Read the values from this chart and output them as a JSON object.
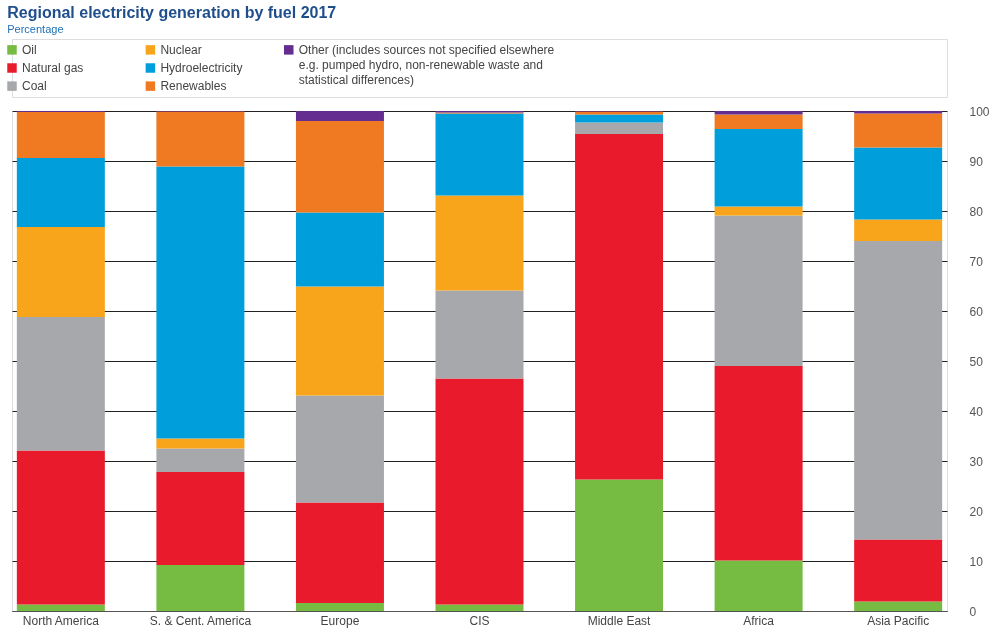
{
  "chart_data": {
    "type": "bar",
    "title": "Regional electricity generation by fuel 2017",
    "subtitle": "Percentage",
    "stacked": true,
    "legend": "top left",
    "grid": "y",
    "categories": [
      "North America",
      "S. & Cent. America",
      "Europe",
      "CIS",
      "Middle East",
      "Africa",
      "Asia Pacific"
    ],
    "ylim": [
      0,
      100
    ],
    "yticks": [
      0,
      10,
      20,
      30,
      40,
      50,
      60,
      70,
      80,
      90,
      100
    ],
    "series": [
      {
        "name": "Oil",
        "color": "#76bc43",
        "values": [
          1.3,
          9.2,
          1.6,
          1.3,
          26.3,
          10.1,
          1.9
        ]
      },
      {
        "name": "Natural gas",
        "color": "#e81a2b",
        "values": [
          30.8,
          18.6,
          20.1,
          45.2,
          69.1,
          38.9,
          12.4
        ]
      },
      {
        "name": "Coal",
        "color": "#a6a8ab",
        "values": [
          26.7,
          4.7,
          21.4,
          17.6,
          2.3,
          30.1,
          59.7
        ]
      },
      {
        "name": "Nuclear",
        "color": "#f8a51c",
        "values": [
          18.0,
          2.0,
          21.8,
          19.0,
          0,
          1.8,
          4.3
        ]
      },
      {
        "name": "Hydroelectricity",
        "color": "#009fdb",
        "values": [
          13.8,
          54.4,
          14.8,
          16.4,
          1.6,
          15.5,
          14.4
        ]
      },
      {
        "name": "Renewables",
        "color": "#f07a22",
        "values": [
          9.2,
          11.0,
          18.3,
          0.2,
          0.6,
          2.9,
          6.8
        ]
      },
      {
        "name": "Other (includes sources not specified elsewhere e.g. pumped hydro, non-renewable waste and statistical differences)",
        "color": "#662d91",
        "values": [
          0.2,
          0.1,
          2.0,
          0.3,
          0.1,
          0.7,
          0.5
        ]
      }
    ]
  }
}
